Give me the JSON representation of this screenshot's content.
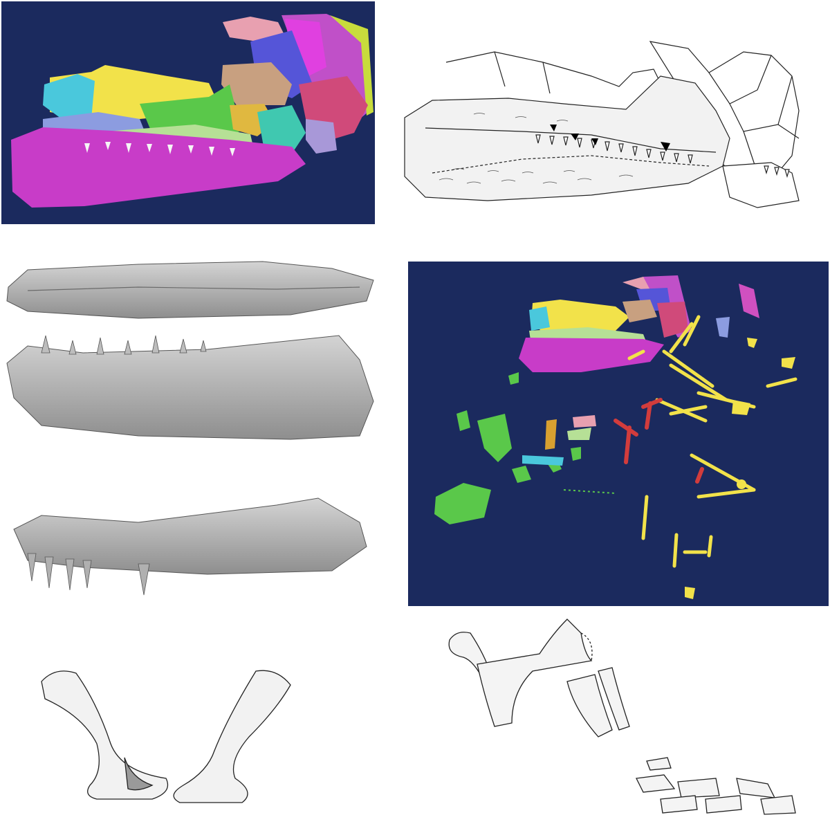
{
  "figure": {
    "panels": [
      {
        "id": "a",
        "kind": "3d-segmented-skull-render"
      },
      {
        "id": "b",
        "kind": "skull-line-drawing"
      },
      {
        "id": "c",
        "kind": "mandible-surface-renders"
      },
      {
        "id": "d",
        "kind": "3d-segmented-skeleton-render"
      },
      {
        "id": "e",
        "kind": "bone-line-drawings"
      },
      {
        "id": "f",
        "kind": "limb-bone-line-drawings"
      }
    ],
    "colors": {
      "render_background": "#1b2a5e",
      "magenta": "#c83cc8",
      "yellow": "#f2e24a",
      "green": "#5ac84a",
      "light_green": "#b6e096",
      "cyan": "#4ac8dc",
      "periwinkle": "#8c9ce0",
      "blue": "#5555d8",
      "tan": "#c8a080",
      "pink": "#e080a0",
      "red": "#d23c3c",
      "orange": "#d8a030",
      "grey_surface": "#b4b4b4",
      "outline": "#222222"
    }
  }
}
